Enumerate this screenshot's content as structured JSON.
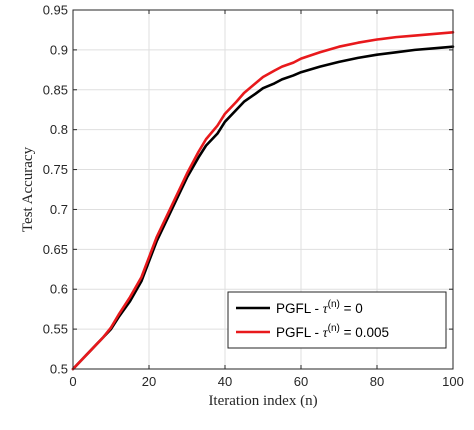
{
  "chart_data": {
    "type": "line",
    "xlabel": "Iteration index (n)",
    "ylabel": "Test Accuracy",
    "xlim": [
      0,
      100
    ],
    "ylim": [
      0.5,
      0.95
    ],
    "xticks": [
      "0",
      "20",
      "40",
      "60",
      "80",
      "100"
    ],
    "yticks": [
      "0.5",
      "0.55",
      "0.6",
      "0.65",
      "0.7",
      "0.75",
      "0.8",
      "0.85",
      "0.9",
      "0.95"
    ],
    "grid": true,
    "legend_position": "bottom-right",
    "series": [
      {
        "name": "PGFL - τ(n) = 0",
        "legend_prefix": "PGFL - ",
        "legend_tau": "τ",
        "legend_sup": "(n)",
        "legend_suffix": " = 0",
        "color": "#000000",
        "x": [
          0,
          2,
          5,
          8,
          10,
          12,
          15,
          18,
          20,
          22,
          25,
          28,
          30,
          33,
          35,
          38,
          40,
          43,
          45,
          48,
          50,
          53,
          55,
          58,
          60,
          65,
          70,
          75,
          80,
          85,
          90,
          95,
          100
        ],
        "y": [
          0.5,
          0.51,
          0.525,
          0.54,
          0.55,
          0.565,
          0.585,
          0.61,
          0.635,
          0.66,
          0.69,
          0.72,
          0.74,
          0.765,
          0.78,
          0.795,
          0.81,
          0.825,
          0.835,
          0.845,
          0.852,
          0.858,
          0.863,
          0.868,
          0.872,
          0.879,
          0.885,
          0.89,
          0.894,
          0.897,
          0.9,
          0.902,
          0.904
        ]
      },
      {
        "name": "PGFL - τ(n) = 0.005",
        "legend_prefix": "PGFL - ",
        "legend_tau": "τ",
        "legend_sup": "(n)",
        "legend_suffix": " = 0.005",
        "color": "#e8191c",
        "x": [
          0,
          2,
          5,
          8,
          10,
          12,
          15,
          18,
          20,
          22,
          25,
          28,
          30,
          33,
          35,
          38,
          40,
          43,
          45,
          48,
          50,
          53,
          55,
          58,
          60,
          65,
          70,
          75,
          80,
          85,
          90,
          95,
          100
        ],
        "y": [
          0.5,
          0.51,
          0.525,
          0.54,
          0.552,
          0.568,
          0.59,
          0.615,
          0.64,
          0.665,
          0.695,
          0.725,
          0.745,
          0.772,
          0.788,
          0.805,
          0.82,
          0.835,
          0.846,
          0.858,
          0.866,
          0.874,
          0.879,
          0.884,
          0.889,
          0.897,
          0.904,
          0.909,
          0.913,
          0.916,
          0.918,
          0.92,
          0.922
        ]
      }
    ]
  }
}
